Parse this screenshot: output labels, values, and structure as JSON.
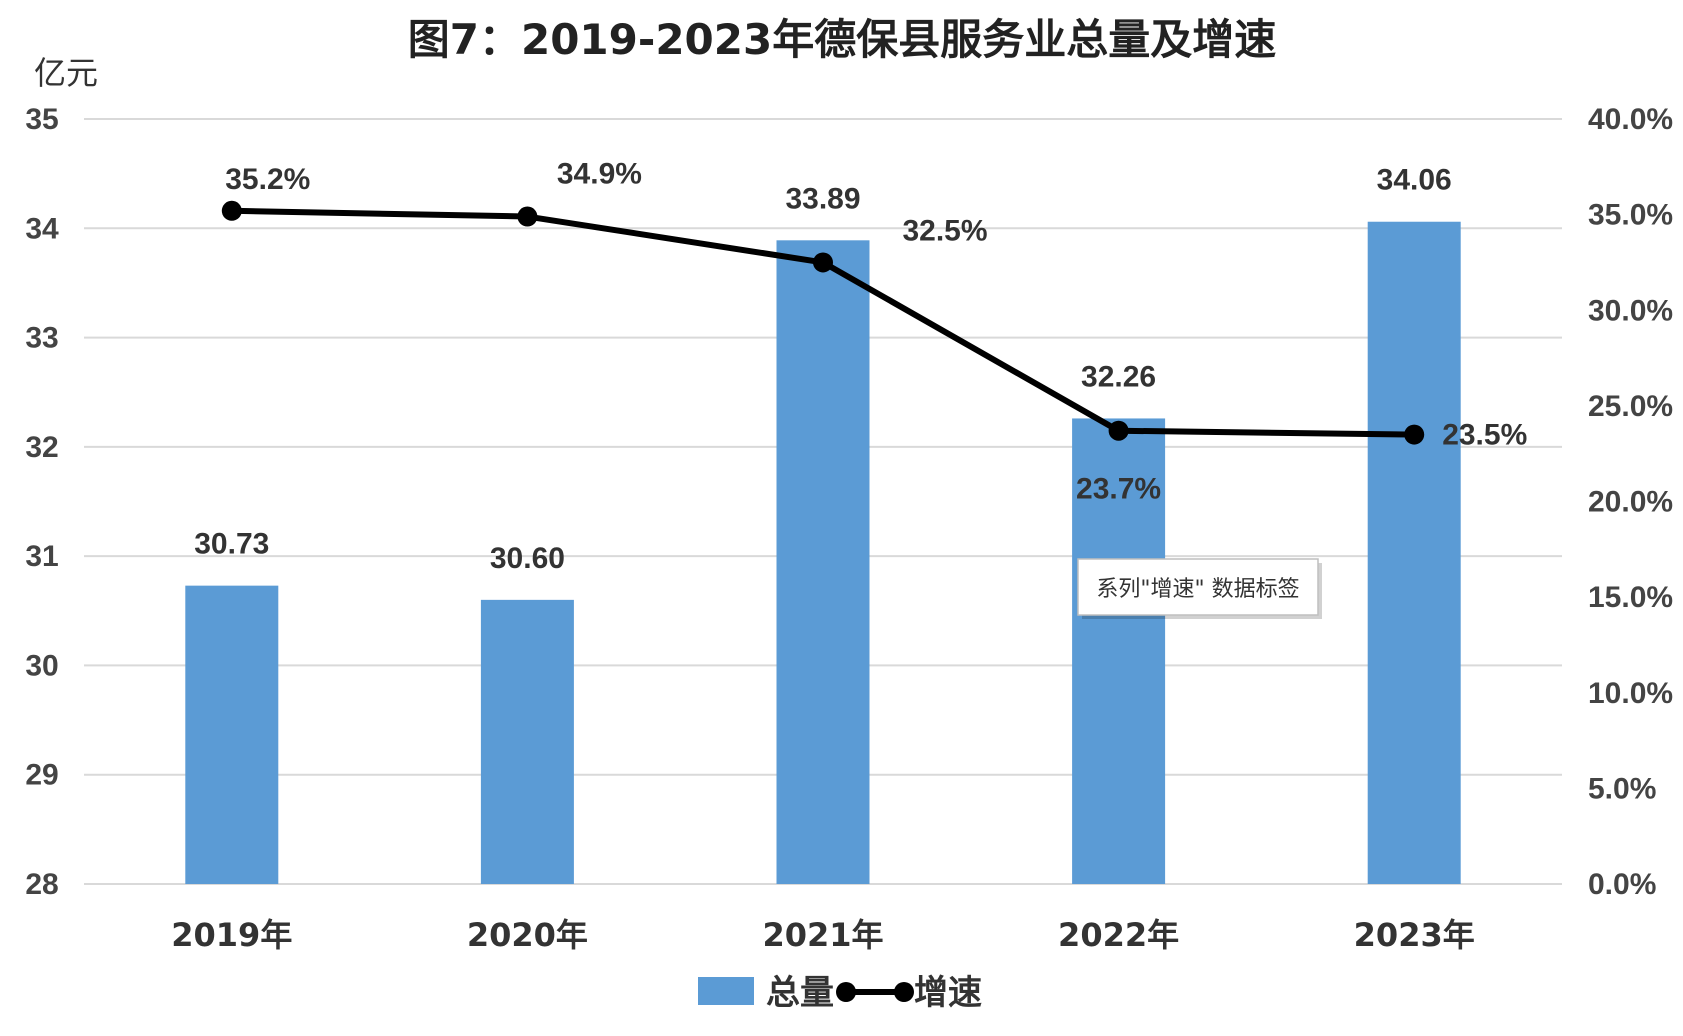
{
  "chart_data": {
    "type": "bar",
    "title": "图7：2019-2023年德保县服务业总量及增速",
    "ylabel": "亿元",
    "categories": [
      "2019年",
      "2020年",
      "2021年",
      "2022年",
      "2023年"
    ],
    "ylim": [
      28,
      35
    ],
    "y_ticks": [
      "35",
      "34",
      "33",
      "32",
      "31",
      "30",
      "29",
      "28"
    ],
    "y2lim": [
      0,
      40
    ],
    "y2_ticks": [
      "40.0%",
      "35.0%",
      "30.0%",
      "25.0%",
      "20.0%",
      "15.0%",
      "10.0%",
      "5.0%",
      "0.0%"
    ],
    "grid": true,
    "legend_position": "bottom",
    "series": [
      {
        "name": "总量",
        "type": "bar",
        "axis": "left",
        "color": "#5B9BD5",
        "values": [
          30.73,
          30.6,
          33.89,
          32.26,
          34.06
        ],
        "labels": [
          "30.73",
          "30.60",
          "33.89",
          "32.26",
          "34.06"
        ]
      },
      {
        "name": "增速",
        "type": "line",
        "axis": "right",
        "color": "#000000",
        "values": [
          35.2,
          34.9,
          32.5,
          23.7,
          23.5
        ],
        "labels": [
          "35.2%",
          "34.9%",
          "32.5%",
          "23.7%",
          "23.5%"
        ]
      }
    ],
    "tooltip": "系列\"增速\" 数据标签"
  }
}
